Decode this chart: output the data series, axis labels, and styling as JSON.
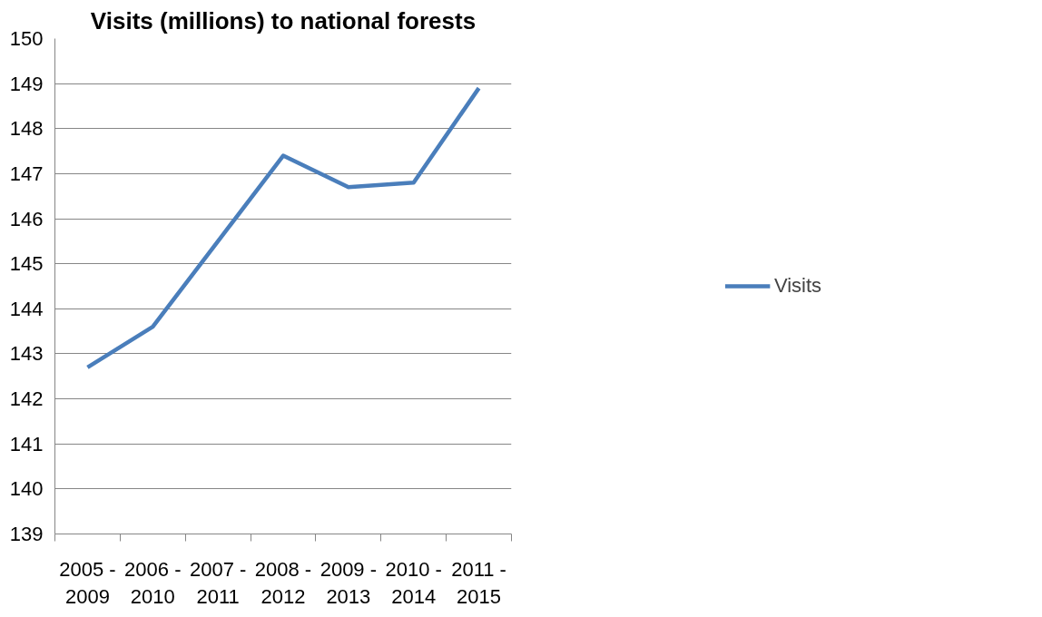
{
  "chart_data": {
    "type": "line",
    "title": "Visits (millions) to national forests",
    "categories": [
      "2005 -\n2009",
      "2006 -\n2010",
      "2007 -\n2011",
      "2008 -\n2012",
      "2009 -\n2013",
      "2010 -\n2014",
      "2011 -\n2015"
    ],
    "series": [
      {
        "name": "Visits",
        "color": "#4a7ebb",
        "values": [
          142.7,
          143.6,
          145.5,
          147.4,
          146.7,
          146.8,
          148.9
        ]
      }
    ],
    "ylim": [
      139,
      150
    ],
    "yticks": [
      139,
      140,
      141,
      142,
      143,
      144,
      145,
      146,
      147,
      148,
      149,
      150
    ],
    "grid": "y",
    "legend": "right",
    "marker": "none",
    "line_style": "solid"
  }
}
